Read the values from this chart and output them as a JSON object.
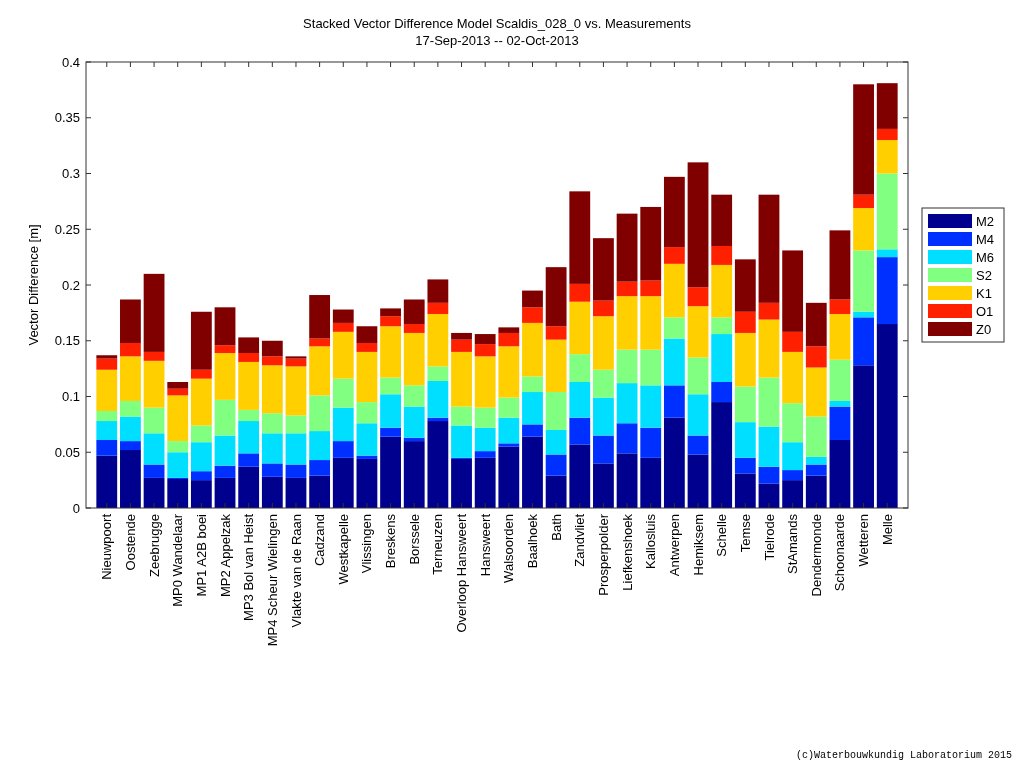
{
  "chart_data": {
    "type": "bar",
    "stacked": true,
    "title": "Stacked Vector Difference Model Scaldis_028_0 vs. Measurements",
    "subtitle": "17-Sep-2013 -- 02-Oct-2013",
    "ylabel": "Vector Difference [m]",
    "annotations": [
      "(c)Waterbouwkundig Laboratorium 2015"
    ],
    "categories": [
      "Nieuwpoort",
      "Oostende",
      "Zeebrugge",
      "MP0 Wandelaar",
      "MP1 A2B boei",
      "MP2 Appelzak",
      "MP3 Bol van Heist",
      "MP4 Scheur Wielingen",
      "Vlakte van de Raan",
      "Cadzand",
      "Westkapelle",
      "Vlissingen",
      "Breskens",
      "Borssele",
      "Terneuzen",
      "Overloop Hansweert",
      "Hansweert",
      "Walsoorden",
      "Baalhoek",
      "Bath",
      "Zandvliet",
      "Prosperpolder",
      "Liefkenshoek",
      "Kallosluis",
      "Antwerpen",
      "Hemiksem",
      "Schelle",
      "Temse",
      "Tielrode",
      "StAmands",
      "Dendermonde",
      "Schoonaarde",
      "Wetteren",
      "Melle"
    ],
    "series": [
      {
        "name": "M2",
        "color": "#00008f",
        "values": [
          0.047,
          0.052,
          0.027,
          0.026,
          0.025,
          0.027,
          0.037,
          0.028,
          0.027,
          0.029,
          0.045,
          0.044,
          0.064,
          0.06,
          0.078,
          0.044,
          0.045,
          0.055,
          0.064,
          0.029,
          0.057,
          0.04,
          0.049,
          0.045,
          0.081,
          0.048,
          0.095,
          0.031,
          0.022,
          0.025,
          0.029,
          0.061,
          0.128,
          0.165
        ]
      },
      {
        "name": "M4",
        "color": "#0030ff",
        "values": [
          0.014,
          0.008,
          0.012,
          0.001,
          0.008,
          0.011,
          0.012,
          0.012,
          0.012,
          0.014,
          0.015,
          0.003,
          0.008,
          0.003,
          0.003,
          0.001,
          0.006,
          0.003,
          0.011,
          0.019,
          0.024,
          0.025,
          0.027,
          0.027,
          0.029,
          0.017,
          0.018,
          0.014,
          0.015,
          0.009,
          0.01,
          0.03,
          0.043,
          0.06
        ]
      },
      {
        "name": "M6",
        "color": "#00dfff",
        "values": [
          0.017,
          0.022,
          0.028,
          0.023,
          0.026,
          0.027,
          0.029,
          0.027,
          0.028,
          0.026,
          0.03,
          0.029,
          0.03,
          0.028,
          0.033,
          0.029,
          0.021,
          0.023,
          0.029,
          0.022,
          0.032,
          0.034,
          0.036,
          0.038,
          0.042,
          0.037,
          0.043,
          0.032,
          0.036,
          0.025,
          0.007,
          0.005,
          0.005,
          0.007
        ]
      },
      {
        "name": "S2",
        "color": "#80ff80",
        "values": [
          0.009,
          0.014,
          0.023,
          0.01,
          0.015,
          0.032,
          0.01,
          0.018,
          0.016,
          0.032,
          0.026,
          0.019,
          0.015,
          0.019,
          0.013,
          0.017,
          0.018,
          0.018,
          0.014,
          0.034,
          0.025,
          0.025,
          0.03,
          0.032,
          0.019,
          0.033,
          0.015,
          0.032,
          0.044,
          0.035,
          0.036,
          0.037,
          0.055,
          0.068
        ]
      },
      {
        "name": "K1",
        "color": "#ffcf00",
        "values": [
          0.037,
          0.04,
          0.042,
          0.041,
          0.042,
          0.042,
          0.043,
          0.043,
          0.044,
          0.044,
          0.042,
          0.045,
          0.046,
          0.047,
          0.047,
          0.049,
          0.046,
          0.046,
          0.048,
          0.047,
          0.047,
          0.048,
          0.048,
          0.048,
          0.048,
          0.046,
          0.047,
          0.048,
          0.052,
          0.046,
          0.044,
          0.041,
          0.038,
          0.03
        ]
      },
      {
        "name": "O1",
        "color": "#ff2000",
        "values": [
          0.01,
          0.012,
          0.008,
          0.006,
          0.008,
          0.007,
          0.008,
          0.008,
          0.007,
          0.007,
          0.008,
          0.008,
          0.009,
          0.008,
          0.01,
          0.011,
          0.011,
          0.012,
          0.014,
          0.012,
          0.016,
          0.014,
          0.013,
          0.014,
          0.015,
          0.017,
          0.017,
          0.019,
          0.015,
          0.018,
          0.019,
          0.013,
          0.012,
          0.01
        ]
      },
      {
        "name": "Z0",
        "color": "#800000",
        "values": [
          0.003,
          0.039,
          0.07,
          0.006,
          0.052,
          0.034,
          0.014,
          0.014,
          0.002,
          0.039,
          0.012,
          0.015,
          0.007,
          0.022,
          0.021,
          0.006,
          0.009,
          0.005,
          0.015,
          0.053,
          0.083,
          0.056,
          0.061,
          0.066,
          0.063,
          0.112,
          0.046,
          0.047,
          0.097,
          0.073,
          0.039,
          0.062,
          0.099,
          0.041
        ]
      }
    ],
    "ylim": [
      0,
      0.4
    ],
    "yticks": [
      0,
      0.05,
      0.1,
      0.15,
      0.2,
      0.25,
      0.3,
      0.35,
      0.4
    ],
    "legend": "right",
    "grid": false
  }
}
